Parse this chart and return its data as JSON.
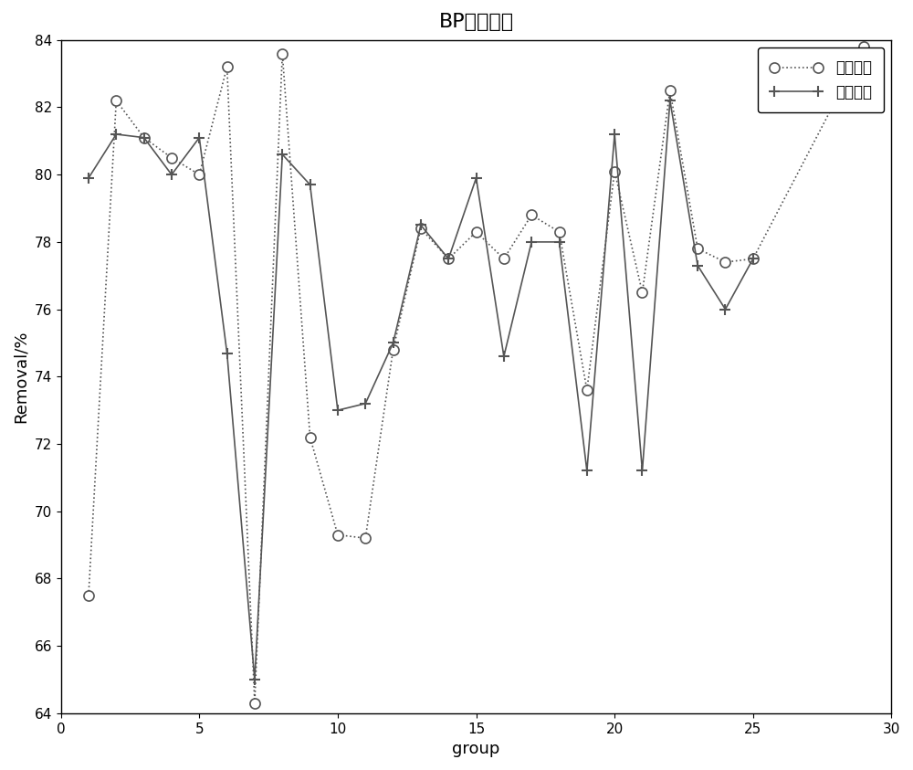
{
  "title": "BP神经网络",
  "xlabel": "group",
  "ylabel": "Removal/%",
  "xlim": [
    0,
    30
  ],
  "ylim": [
    64,
    84
  ],
  "yticks": [
    64,
    66,
    68,
    70,
    72,
    74,
    76,
    78,
    80,
    82,
    84
  ],
  "xticks": [
    0,
    5,
    10,
    15,
    20,
    25,
    30
  ],
  "original_x": [
    1,
    2,
    3,
    4,
    5,
    6,
    7,
    8,
    9,
    10,
    11,
    12,
    13,
    14,
    15,
    16,
    17,
    18,
    19,
    20,
    21,
    22,
    23,
    24,
    25,
    29
  ],
  "original_y": [
    67.5,
    82.2,
    81.1,
    80.5,
    80.0,
    83.2,
    64.3,
    83.6,
    72.2,
    69.3,
    69.2,
    74.8,
    78.4,
    77.5,
    78.3,
    77.5,
    78.8,
    78.3,
    73.6,
    80.1,
    76.5,
    82.5,
    77.8,
    77.4,
    77.5,
    83.8
  ],
  "simulated_x": [
    1,
    2,
    3,
    4,
    5,
    6,
    7,
    8,
    9,
    10,
    11,
    12,
    13,
    14,
    15,
    16,
    17,
    18,
    19,
    20,
    21,
    22,
    23,
    24,
    25
  ],
  "simulated_y": [
    79.9,
    81.2,
    81.1,
    80.0,
    81.1,
    74.7,
    65.0,
    80.6,
    79.7,
    73.0,
    73.2,
    75.0,
    78.5,
    77.5,
    79.9,
    74.6,
    78.0,
    78.0,
    71.2,
    81.2,
    71.2,
    82.2,
    77.3,
    76.0,
    77.5
  ],
  "legend_label_orig": "原始数据",
  "legend_label_sim": "模拟数据",
  "color": "#555555",
  "background_color": "#ffffff"
}
